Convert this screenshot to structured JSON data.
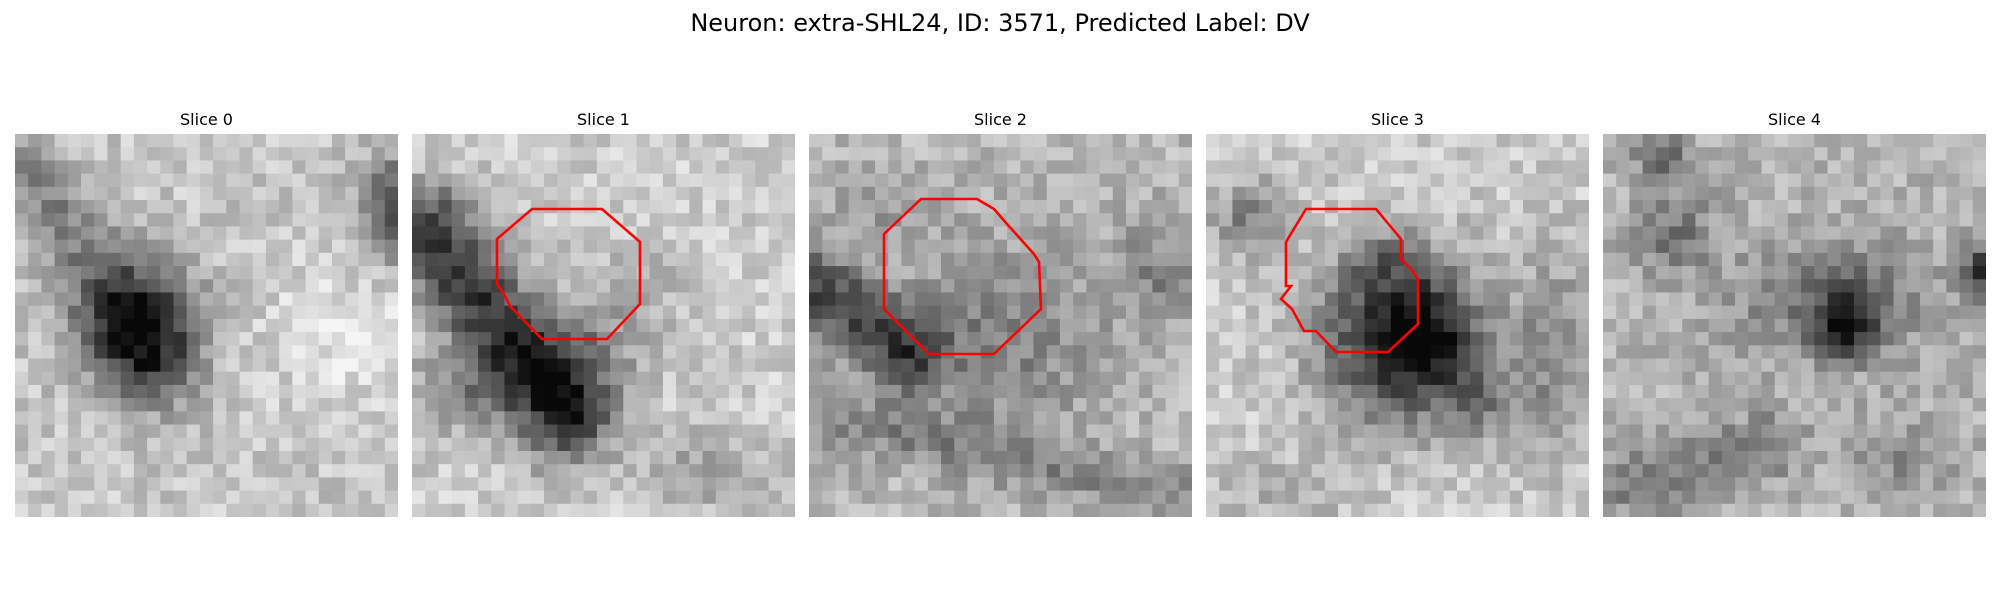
{
  "figure": {
    "title": "Neuron: extra-SHL24, ID: 3571, Predicted Label: DV"
  },
  "contour_color": "#ff0000",
  "slices": [
    {
      "title": "Slice 0",
      "has_contour": false
    },
    {
      "title": "Slice 1",
      "has_contour": true
    },
    {
      "title": "Slice 2",
      "has_contour": true
    },
    {
      "title": "Slice 3",
      "has_contour": true
    },
    {
      "title": "Slice 4",
      "has_contour": false
    }
  ]
}
